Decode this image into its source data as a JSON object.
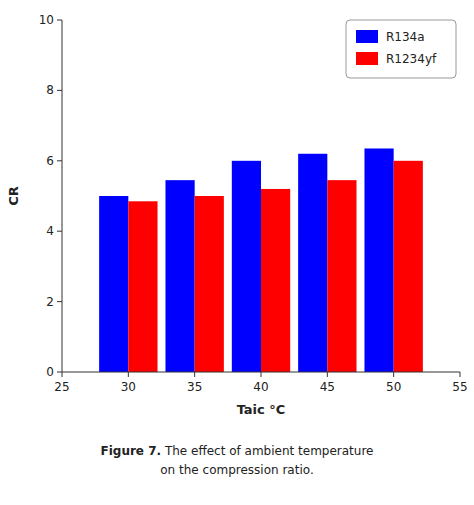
{
  "chart_data": {
    "type": "bar",
    "x": [
      30,
      35,
      40,
      45,
      50
    ],
    "series": [
      {
        "name": "R134a",
        "color": "#0000FF",
        "values": [
          5.0,
          5.45,
          6.0,
          6.2,
          6.35
        ]
      },
      {
        "name": "R1234yf",
        "color": "#FF0000",
        "values": [
          4.85,
          5.0,
          5.2,
          5.45,
          6.0
        ]
      }
    ],
    "x_label": "Taic °C",
    "y_label": "CR",
    "xlim": [
      25,
      55
    ],
    "xticks": [
      25,
      30,
      35,
      40,
      45,
      50,
      55
    ],
    "ylim": [
      0,
      10
    ],
    "yticks": [
      0,
      2,
      4,
      6,
      8,
      10
    ],
    "grid": false,
    "legend": "upper right",
    "annotations": [
      "Figure 7.",
      "The effect of ambient temperature",
      "on the compression ratio."
    ]
  }
}
